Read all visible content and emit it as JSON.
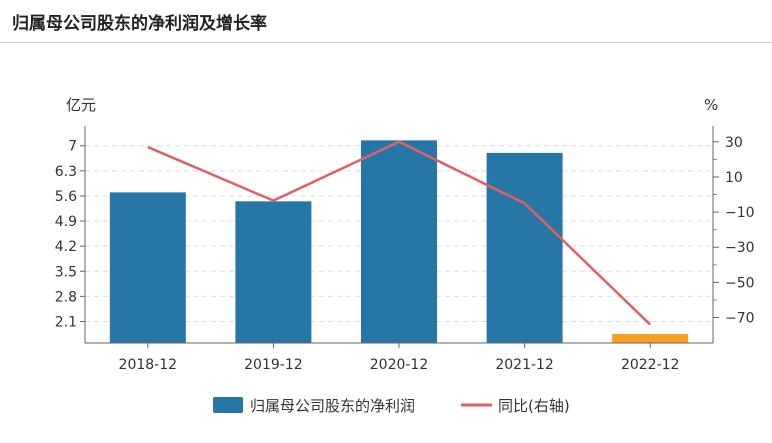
{
  "header": {
    "title": "归属母公司股东的净利润及增长率"
  },
  "chart_data": {
    "type": "bar",
    "categories": [
      "2018-12",
      "2019-12",
      "2020-12",
      "2021-12",
      "2022-12"
    ],
    "series": [
      {
        "name": "归属母公司股东的净利润",
        "type": "bar",
        "axis": "left",
        "values": [
          5.7,
          5.45,
          7.15,
          6.8,
          1.75
        ]
      },
      {
        "name": "同比(右轴)",
        "type": "line",
        "axis": "right",
        "values": [
          27,
          -3.5,
          30,
          -5,
          -74
        ]
      }
    ],
    "y_left": {
      "unit": "亿元",
      "min": 1.5,
      "max": 7.55,
      "ticks": [
        2.1,
        2.8,
        3.5,
        4.2,
        4.9,
        5.6,
        6.3,
        7
      ],
      "tick_labels": [
        "2.1",
        "2.8",
        "3.5",
        "4.2",
        "4.9",
        "5.6",
        "6.3",
        "7"
      ]
    },
    "y_right": {
      "unit": "%",
      "min": -84.5,
      "max": 39,
      "ticks": [
        -70,
        -50,
        -30,
        -10,
        10,
        30
      ],
      "tick_labels": [
        "−70",
        "−50",
        "−30",
        "−10",
        "10",
        "30"
      ]
    },
    "colors": {
      "bar": "#2677a6",
      "bar_highlight": "#f5a020",
      "line": "#e06060"
    },
    "highlight_index": 4,
    "grid": true,
    "legend": "bottom-center"
  }
}
